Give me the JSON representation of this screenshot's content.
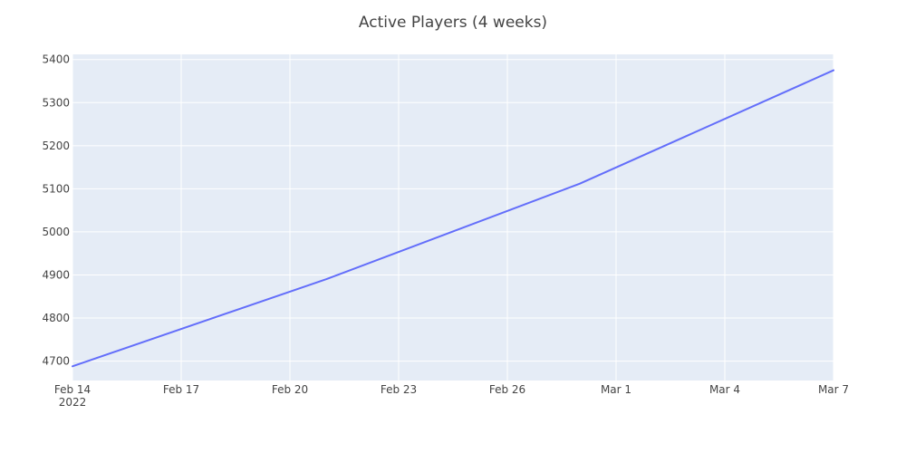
{
  "chart_data": {
    "type": "line",
    "title": "Active Players (4 weeks)",
    "xlabel": "",
    "ylabel": "",
    "x_range": [
      "2022-02-14",
      "2022-03-07"
    ],
    "ylim": [
      4655,
      5412
    ],
    "x_ticks": [
      {
        "date": "2022-02-14",
        "label": "Feb 14",
        "sublabel": "2022"
      },
      {
        "date": "2022-02-17",
        "label": "Feb 17"
      },
      {
        "date": "2022-02-20",
        "label": "Feb 20"
      },
      {
        "date": "2022-02-23",
        "label": "Feb 23"
      },
      {
        "date": "2022-02-26",
        "label": "Feb 26"
      },
      {
        "date": "2022-03-01",
        "label": "Mar 1"
      },
      {
        "date": "2022-03-04",
        "label": "Mar 4"
      },
      {
        "date": "2022-03-07",
        "label": "Mar 7"
      }
    ],
    "y_ticks": [
      4700,
      4800,
      4900,
      5000,
      5100,
      5200,
      5300,
      5400
    ],
    "grid": true,
    "colors": {
      "plot_bg": "#e5ecf6",
      "line": "#636efa"
    },
    "series": [
      {
        "x": [
          "2022-02-14",
          "2022-02-21",
          "2022-02-28",
          "2022-03-07"
        ],
        "y": [
          4688,
          4890,
          5112,
          5375
        ]
      }
    ]
  }
}
